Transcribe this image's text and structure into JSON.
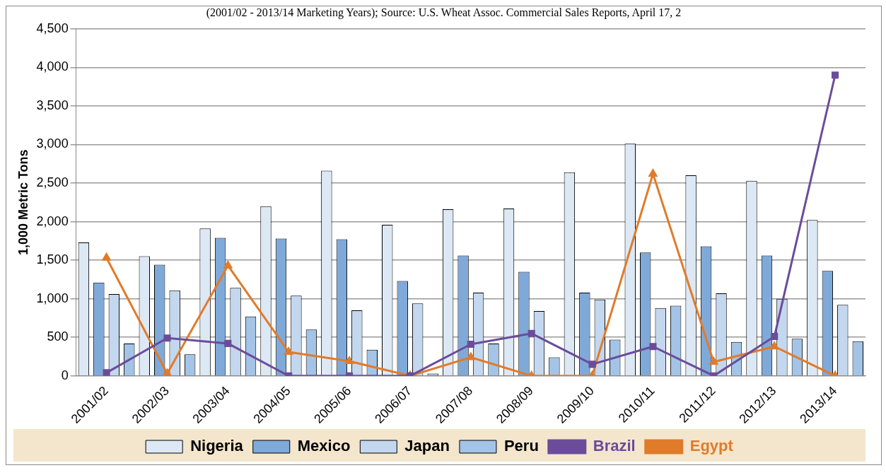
{
  "chart_data": {
    "type": "bar",
    "subtitle": "(2001/02 - 2013/14 Marketing Years); Source: U.S. Wheat Assoc. Commercial Sales Reports, April 17, 2",
    "ylabel": "1,000 Metric Tons",
    "categories": [
      "2001/02",
      "2002/03",
      "2003/04",
      "2004/05",
      "2005/06",
      "2006/07",
      "2007/08",
      "2008/09",
      "2009/10",
      "2010/11",
      "2011/12",
      "2012/13",
      "2013/14"
    ],
    "series": [
      {
        "name": "Nigeria",
        "color": "#dde8f5",
        "values": [
          1730,
          1550,
          1910,
          2200,
          2660,
          1960,
          2160,
          2170,
          2640,
          3010,
          2600,
          2530,
          2020
        ]
      },
      {
        "name": "Mexico",
        "color": "#7fa9d9",
        "values": [
          1210,
          1440,
          1790,
          1780,
          1770,
          1230,
          1560,
          1350,
          1080,
          1600,
          1680,
          1560,
          1360
        ]
      },
      {
        "name": "Japan",
        "color": "#c3d7ee",
        "values": [
          1060,
          1110,
          1140,
          1040,
          850,
          940,
          1080,
          840,
          990,
          880,
          1070,
          1000,
          920
        ]
      },
      {
        "name": "Peru",
        "color": "#a3c4e6",
        "values": [
          420,
          280,
          770,
          600,
          340,
          30,
          420,
          240,
          470,
          910,
          440,
          480,
          450
        ]
      },
      {
        "name": "Brazil",
        "type": "line",
        "color": "#6b4c9a",
        "marker": "square",
        "values": [
          40,
          490,
          420,
          0,
          0,
          0,
          410,
          550,
          150,
          380,
          0,
          510,
          3900
        ]
      },
      {
        "name": "Egypt",
        "type": "line",
        "color": "#e07b2a",
        "marker": "triangle",
        "values": [
          1530,
          30,
          1430,
          310,
          190,
          0,
          240,
          0,
          0,
          2620,
          180,
          380,
          0
        ]
      }
    ],
    "ylim": [
      0,
      4500
    ],
    "yticks": [
      0,
      500,
      {
        "value": 1000,
        "label": "1,000"
      },
      {
        "value": 1500,
        "label": "1,500"
      },
      {
        "value": 2000,
        "label": "2,000"
      },
      {
        "value": 2500,
        "label": "2,500"
      },
      {
        "value": 3000,
        "label": "3,000"
      },
      {
        "value": 3500,
        "label": "3,500"
      },
      {
        "value": 4000,
        "label": "4,000"
      },
      {
        "value": 4500,
        "label": "4,500"
      }
    ],
    "grid": "y",
    "legend": "bottom"
  }
}
